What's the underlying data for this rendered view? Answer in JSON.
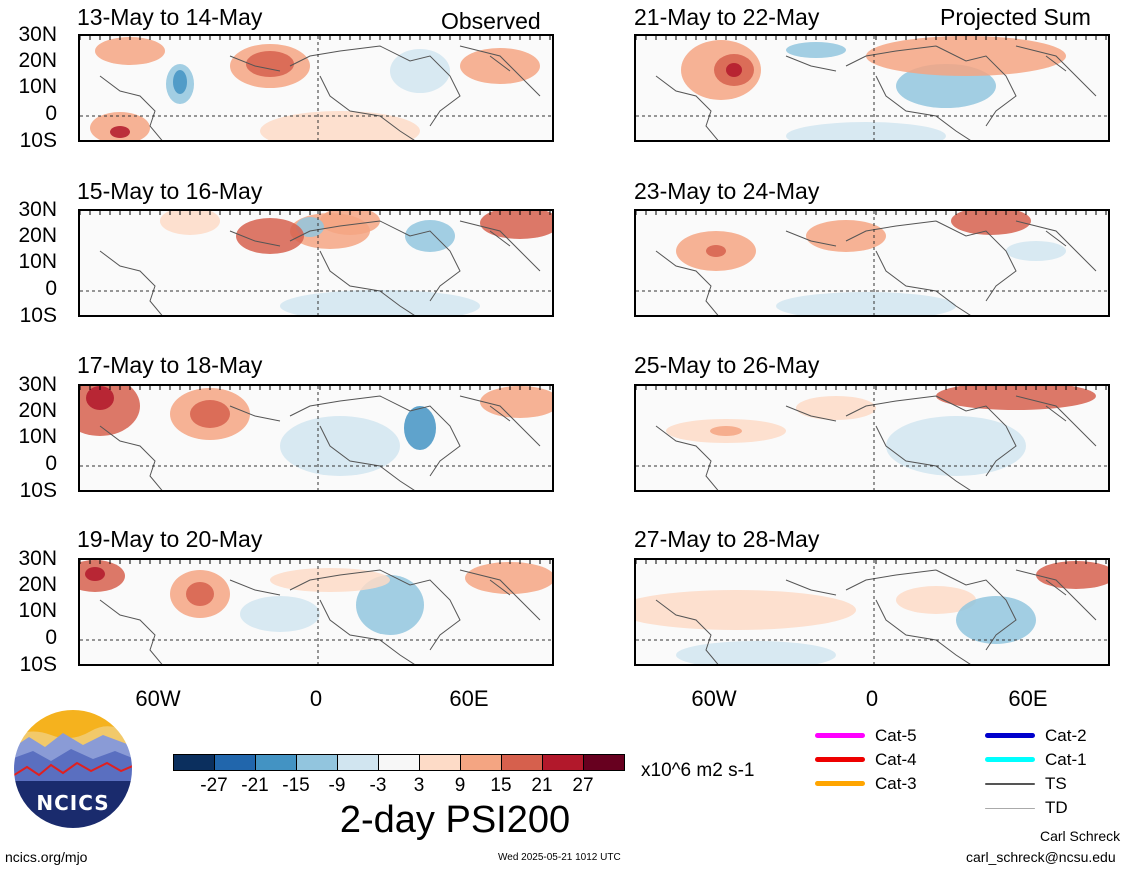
{
  "column_headers": {
    "left": "Observed",
    "right": "Projected Sum"
  },
  "panels_left": [
    {
      "title": "13-May to 14-May"
    },
    {
      "title": "15-May to 16-May"
    },
    {
      "title": "17-May to 18-May"
    },
    {
      "title": "19-May to 20-May"
    }
  ],
  "panels_right": [
    {
      "title": "21-May to 22-May"
    },
    {
      "title": "23-May to 24-May"
    },
    {
      "title": "25-May to 26-May"
    },
    {
      "title": "27-May to 28-May"
    }
  ],
  "lat_labels": [
    "30N",
    "20N",
    "10N",
    "0",
    "10S"
  ],
  "lon_labels": [
    "60W",
    "0",
    "60E"
  ],
  "colorbar": {
    "colors": [
      "#0b2f5e",
      "#2166ac",
      "#4393c3",
      "#92c5de",
      "#d1e5f0",
      "#f7f7f7",
      "#fddbc7",
      "#f4a582",
      "#d6604d",
      "#b2182b",
      "#67001f"
    ],
    "ticks": [
      "-27",
      "-21",
      "-15",
      "-9",
      "-3",
      "3",
      "9",
      "15",
      "21",
      "27"
    ],
    "units": "x10^6 m2 s-1",
    "title": "2-day PSI200"
  },
  "storm_legend": [
    {
      "label": "Cat-5",
      "color": "#ff00ff"
    },
    {
      "label": "Cat-4",
      "color": "#ee0000"
    },
    {
      "label": "Cat-3",
      "color": "#ffa500"
    },
    {
      "label": "Cat-2",
      "color": "#0000cc"
    },
    {
      "label": "Cat-1",
      "color": "#00ffff"
    },
    {
      "label": "TS",
      "color": "#555555"
    },
    {
      "label": "TD",
      "color": "#aaaaaa"
    }
  ],
  "logo_text": "NCICS",
  "footer": {
    "left": "ncics.org/mjo",
    "center": "Wed 2025-05-21 1012 UTC",
    "author": "Carl Schreck",
    "email": "carl_schreck@ncsu.edu"
  }
}
